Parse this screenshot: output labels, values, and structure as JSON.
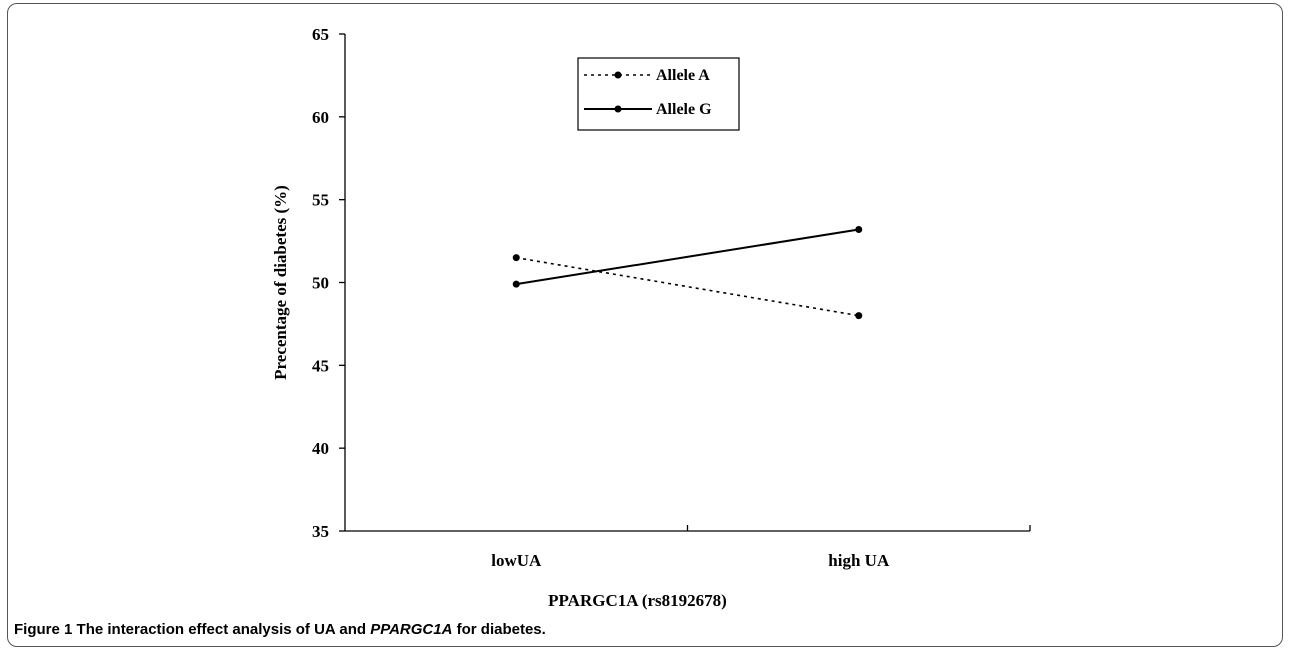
{
  "chart_data": {
    "type": "line",
    "categories": [
      "lowUA",
      "high UA"
    ],
    "series": [
      {
        "name": "Allele A",
        "style": "dotted",
        "values": [
          51.5,
          48.0
        ]
      },
      {
        "name": "Allele G",
        "style": "solid",
        "values": [
          49.9,
          53.2
        ]
      }
    ],
    "ylabel": "Precentage of diabetes (%)",
    "xlabel": "PPARGC1A (rs8192678)",
    "ylim": [
      35,
      65
    ],
    "yticks": [
      35,
      40,
      45,
      50,
      55,
      60,
      65
    ],
    "grid": false,
    "legend_position": "top-center",
    "line_color": "#000000"
  },
  "caption": {
    "figure_label": "Figure 1",
    "text_before": " The interaction effect analysis of UA and ",
    "gene": "PPARGC1A",
    "text_after": " for diabetes."
  }
}
